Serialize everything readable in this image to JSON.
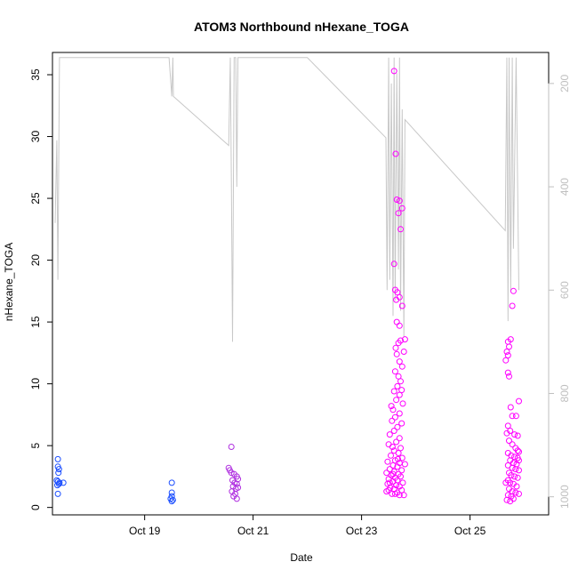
{
  "chart_data": {
    "type": "scatter",
    "title": "ATOM3 Northbound nHexane_TOGA",
    "xlabel": "Date",
    "ylabel": "nHexane_TOGA",
    "xlim": [
      17.3,
      26.45
    ],
    "ylim": [
      -0.6,
      36.8
    ],
    "x_ticks": [
      {
        "value": 19,
        "label": "Oct 19"
      },
      {
        "value": 21,
        "label": "Oct 21"
      },
      {
        "value": 23,
        "label": "Oct 23"
      },
      {
        "value": 25,
        "label": "Oct 25"
      }
    ],
    "y_ticks": [
      0,
      5,
      10,
      15,
      20,
      25,
      30,
      35
    ],
    "grid": false,
    "colors": {
      "low": "#0000ff",
      "mid": "#4040ff",
      "high": "#ff00ff",
      "secondary_axis": "#bfbfbf",
      "secondary_line": "#c8c8c8"
    },
    "secondary_axis": {
      "label": "",
      "lim": [
        1035,
        140
      ],
      "ticks": [
        200,
        400,
        600,
        800,
        1000
      ]
    },
    "series": [
      {
        "color": "#1a4dff",
        "points": [
          [
            17.4,
            3.9
          ],
          [
            17.4,
            3.3
          ],
          [
            17.42,
            3.1
          ],
          [
            17.41,
            2.8
          ],
          [
            17.38,
            2.2
          ],
          [
            17.4,
            2.1
          ],
          [
            17.42,
            1.9
          ],
          [
            17.39,
            1.8
          ],
          [
            17.43,
            2.0
          ],
          [
            17.5,
            2.0
          ],
          [
            17.4,
            1.1
          ],
          [
            19.5,
            2.0
          ],
          [
            19.5,
            1.2
          ],
          [
            19.5,
            0.9
          ],
          [
            19.48,
            0.7
          ],
          [
            19.52,
            0.6
          ],
          [
            19.5,
            0.5
          ]
        ]
      },
      {
        "color": "#b030e0",
        "points": [
          [
            20.6,
            4.9
          ],
          [
            20.55,
            3.2
          ],
          [
            20.57,
            3.0
          ],
          [
            20.6,
            2.8
          ],
          [
            20.65,
            2.7
          ],
          [
            20.7,
            2.5
          ],
          [
            20.62,
            2.2
          ],
          [
            20.66,
            2.0
          ],
          [
            20.7,
            1.9
          ],
          [
            20.63,
            1.7
          ],
          [
            20.68,
            1.5
          ],
          [
            20.61,
            1.3
          ],
          [
            20.67,
            1.1
          ],
          [
            20.64,
            0.9
          ],
          [
            20.7,
            0.7
          ],
          [
            20.72,
            1.6
          ],
          [
            20.72,
            2.3
          ]
        ]
      },
      {
        "color": "#ff00ff",
        "points": [
          [
            23.6,
            35.3
          ],
          [
            23.63,
            28.6
          ],
          [
            23.65,
            24.9
          ],
          [
            23.7,
            24.8
          ],
          [
            23.75,
            24.2
          ],
          [
            23.68,
            23.8
          ],
          [
            23.72,
            22.5
          ],
          [
            23.6,
            19.7
          ],
          [
            23.7,
            17.0
          ],
          [
            23.62,
            17.6
          ],
          [
            23.66,
            17.4
          ],
          [
            23.64,
            16.8
          ],
          [
            23.75,
            16.3
          ],
          [
            23.7,
            14.7
          ],
          [
            23.65,
            15.0
          ],
          [
            23.8,
            13.6
          ],
          [
            23.72,
            13.5
          ],
          [
            23.68,
            13.3
          ],
          [
            23.63,
            12.9
          ],
          [
            23.78,
            12.6
          ],
          [
            23.65,
            12.4
          ],
          [
            23.7,
            11.8
          ],
          [
            23.75,
            11.4
          ],
          [
            23.62,
            11.0
          ],
          [
            23.68,
            10.6
          ],
          [
            23.72,
            10.2
          ],
          [
            23.66,
            9.8
          ],
          [
            23.74,
            9.5
          ],
          [
            23.6,
            9.4
          ],
          [
            23.7,
            9.1
          ],
          [
            23.64,
            8.7
          ],
          [
            23.76,
            8.4
          ],
          [
            23.55,
            8.2
          ],
          [
            23.58,
            7.9
          ],
          [
            23.7,
            7.6
          ],
          [
            23.62,
            7.3
          ],
          [
            23.56,
            7.0
          ],
          [
            23.74,
            6.8
          ],
          [
            23.66,
            6.5
          ],
          [
            23.6,
            6.2
          ],
          [
            23.52,
            5.9
          ],
          [
            23.7,
            5.6
          ],
          [
            23.64,
            5.3
          ],
          [
            23.5,
            5.1
          ],
          [
            23.57,
            4.9
          ],
          [
            23.72,
            4.8
          ],
          [
            23.6,
            4.6
          ],
          [
            23.68,
            4.4
          ],
          [
            23.54,
            4.2
          ],
          [
            23.75,
            4.0
          ],
          [
            23.62,
            3.8
          ],
          [
            23.48,
            3.7
          ],
          [
            23.7,
            3.6
          ],
          [
            23.58,
            3.4
          ],
          [
            23.66,
            3.3
          ],
          [
            23.52,
            3.1
          ],
          [
            23.74,
            3.0
          ],
          [
            23.6,
            2.9
          ],
          [
            23.46,
            2.8
          ],
          [
            23.68,
            2.7
          ],
          [
            23.55,
            2.6
          ],
          [
            23.72,
            2.5
          ],
          [
            23.62,
            2.4
          ],
          [
            23.5,
            2.3
          ],
          [
            23.66,
            2.2
          ],
          [
            23.58,
            2.1
          ],
          [
            23.76,
            2.0
          ],
          [
            23.48,
            1.9
          ],
          [
            23.64,
            1.8
          ],
          [
            23.7,
            1.7
          ],
          [
            23.53,
            1.6
          ],
          [
            23.6,
            1.5
          ],
          [
            23.74,
            1.4
          ],
          [
            23.46,
            1.3
          ],
          [
            23.66,
            1.2
          ],
          [
            23.56,
            1.1
          ],
          [
            23.7,
            1.0
          ],
          [
            23.62,
            1.1
          ],
          [
            23.5,
            1.4
          ],
          [
            23.78,
            1.0
          ],
          [
            23.8,
            3.5
          ],
          [
            23.52,
            2.0
          ],
          [
            23.58,
            2.7
          ],
          [
            23.67,
            3.9
          ],
          [
            25.8,
            17.5
          ],
          [
            25.78,
            16.3
          ],
          [
            25.75,
            13.6
          ],
          [
            25.7,
            13.4
          ],
          [
            25.72,
            13.0
          ],
          [
            25.68,
            12.6
          ],
          [
            25.7,
            12.3
          ],
          [
            25.66,
            11.9
          ],
          [
            25.7,
            10.9
          ],
          [
            25.72,
            10.6
          ],
          [
            25.9,
            8.6
          ],
          [
            25.75,
            8.1
          ],
          [
            25.78,
            7.4
          ],
          [
            25.85,
            7.4
          ],
          [
            25.7,
            6.6
          ],
          [
            25.74,
            6.2
          ],
          [
            25.68,
            6.0
          ],
          [
            25.82,
            5.9
          ],
          [
            25.88,
            5.8
          ],
          [
            25.72,
            5.4
          ],
          [
            25.78,
            5.1
          ],
          [
            25.84,
            4.8
          ],
          [
            25.9,
            4.5
          ],
          [
            25.7,
            4.4
          ],
          [
            25.76,
            4.2
          ],
          [
            25.82,
            4.1
          ],
          [
            25.88,
            4.0
          ],
          [
            25.74,
            3.8
          ],
          [
            25.8,
            3.6
          ],
          [
            25.86,
            3.5
          ],
          [
            25.7,
            3.4
          ],
          [
            25.78,
            3.2
          ],
          [
            25.84,
            3.1
          ],
          [
            25.9,
            3.0
          ],
          [
            25.72,
            2.8
          ],
          [
            25.76,
            2.6
          ],
          [
            25.82,
            2.5
          ],
          [
            25.88,
            2.4
          ],
          [
            25.7,
            2.2
          ],
          [
            25.74,
            2.0
          ],
          [
            25.8,
            1.9
          ],
          [
            25.86,
            1.7
          ],
          [
            25.72,
            1.5
          ],
          [
            25.78,
            1.3
          ],
          [
            25.84,
            1.2
          ],
          [
            25.7,
            1.0
          ],
          [
            25.76,
            0.9
          ],
          [
            25.8,
            0.7
          ],
          [
            25.68,
            0.6
          ],
          [
            25.74,
            0.5
          ],
          [
            25.9,
            1.1
          ],
          [
            25.66,
            2.0
          ],
          [
            25.9,
            3.8
          ],
          [
            25.88,
            4.6
          ]
        ]
      }
    ],
    "secondary_line": [
      [
        17.35,
        470
      ],
      [
        17.38,
        310
      ],
      [
        17.4,
        580
      ],
      [
        17.43,
        150
      ],
      [
        17.5,
        150
      ],
      [
        19.45,
        150
      ],
      [
        19.5,
        225
      ],
      [
        19.52,
        150
      ],
      [
        19.53,
        225
      ],
      [
        20.55,
        320
      ],
      [
        20.58,
        150
      ],
      [
        20.6,
        390
      ],
      [
        20.62,
        700
      ],
      [
        20.65,
        150
      ],
      [
        20.68,
        150
      ],
      [
        20.7,
        400
      ],
      [
        20.72,
        150
      ],
      [
        22.0,
        150
      ],
      [
        23.45,
        305
      ],
      [
        23.47,
        600
      ],
      [
        23.5,
        150
      ],
      [
        23.52,
        580
      ],
      [
        23.55,
        200
      ],
      [
        23.58,
        650
      ],
      [
        23.6,
        150
      ],
      [
        23.62,
        620
      ],
      [
        23.65,
        180
      ],
      [
        23.68,
        560
      ],
      [
        23.7,
        150
      ],
      [
        23.72,
        640
      ],
      [
        23.75,
        250
      ],
      [
        23.78,
        690
      ],
      [
        23.8,
        270
      ],
      [
        25.65,
        485
      ],
      [
        25.68,
        150
      ],
      [
        25.7,
        660
      ],
      [
        25.72,
        150
      ],
      [
        25.75,
        600
      ],
      [
        25.78,
        150
      ],
      [
        25.8,
        520
      ],
      [
        25.85,
        150
      ],
      [
        25.9,
        600
      ]
    ]
  }
}
